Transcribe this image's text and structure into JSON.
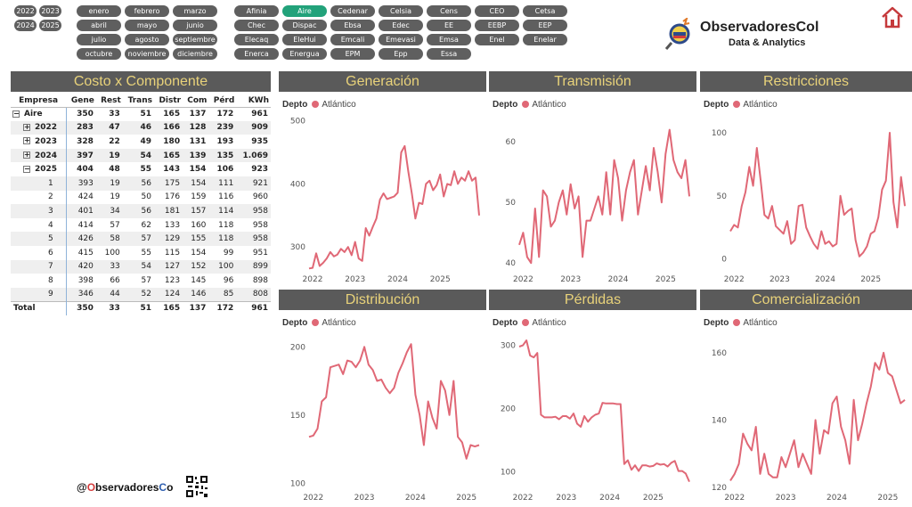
{
  "years": [
    "2022",
    "2023",
    "2024",
    "2025"
  ],
  "months": [
    "enero",
    "febrero",
    "marzo",
    "abril",
    "mayo",
    "junio",
    "julio",
    "agosto",
    "septiembre",
    "octubre",
    "noviembre",
    "diciembre"
  ],
  "companies": [
    "Afinia",
    "Aire",
    "Cedenar",
    "Celsia",
    "Cens",
    "CEO",
    "Cetsa",
    "Chec",
    "Dispac",
    "Ebsa",
    "Edec",
    "EE",
    "EEBP",
    "EEP",
    "Elecaq",
    "EleHui",
    "Emcali",
    "Emevasi",
    "Emsa",
    "Enel",
    "Enelar",
    "Enerca",
    "Energua",
    "EPM",
    "Epp",
    "Essa"
  ],
  "selected_company": "Aire",
  "logo": {
    "title": "ObservadoresCol",
    "subtitle": "Data & Analytics"
  },
  "icons": {
    "home": "home-icon",
    "logo": "magnifier-logo-icon",
    "qr": "qr-code-icon"
  },
  "colors": {
    "accent": "#22a27a",
    "series": "#e06876",
    "header_bg": "#5a5a5a",
    "header_text": "#e8d27a"
  },
  "matrix": {
    "title": "Costo x Componente",
    "headers": [
      "Empresa",
      "Gene",
      "Rest",
      "Trans",
      "Distr",
      "Com",
      "Pérd",
      "KWh"
    ],
    "rows": [
      {
        "label": "Aire",
        "toggle": "⊟",
        "level": 0,
        "bold": true,
        "vals": [
          "350",
          "33",
          "51",
          "165",
          "137",
          "172",
          "961"
        ]
      },
      {
        "label": "2022",
        "toggle": "⊞",
        "level": 1,
        "bold": true,
        "vals": [
          "283",
          "47",
          "46",
          "166",
          "128",
          "239",
          "909"
        ]
      },
      {
        "label": "2023",
        "toggle": "⊞",
        "level": 1,
        "bold": true,
        "vals": [
          "328",
          "22",
          "49",
          "180",
          "131",
          "193",
          "935"
        ]
      },
      {
        "label": "2024",
        "toggle": "⊞",
        "level": 1,
        "bold": true,
        "vals": [
          "397",
          "19",
          "54",
          "165",
          "139",
          "135",
          "1.069"
        ]
      },
      {
        "label": "2025",
        "toggle": "⊟",
        "level": 1,
        "bold": true,
        "vals": [
          "404",
          "48",
          "55",
          "143",
          "154",
          "106",
          "923"
        ]
      },
      {
        "label": "1",
        "level": 2,
        "vals": [
          "393",
          "19",
          "56",
          "175",
          "154",
          "111",
          "921"
        ]
      },
      {
        "label": "2",
        "level": 2,
        "vals": [
          "424",
          "19",
          "50",
          "176",
          "159",
          "116",
          "960"
        ]
      },
      {
        "label": "3",
        "level": 2,
        "vals": [
          "401",
          "34",
          "56",
          "181",
          "157",
          "114",
          "958"
        ]
      },
      {
        "label": "4",
        "level": 2,
        "vals": [
          "414",
          "57",
          "62",
          "133",
          "160",
          "118",
          "958"
        ]
      },
      {
        "label": "5",
        "level": 2,
        "vals": [
          "426",
          "58",
          "57",
          "129",
          "155",
          "118",
          "958"
        ]
      },
      {
        "label": "6",
        "level": 2,
        "vals": [
          "415",
          "100",
          "55",
          "115",
          "154",
          "99",
          "951"
        ]
      },
      {
        "label": "7",
        "level": 2,
        "vals": [
          "420",
          "33",
          "54",
          "127",
          "152",
          "100",
          "899"
        ]
      },
      {
        "label": "8",
        "level": 2,
        "vals": [
          "398",
          "66",
          "57",
          "123",
          "145",
          "96",
          "898"
        ]
      },
      {
        "label": "9",
        "level": 2,
        "vals": [
          "346",
          "44",
          "52",
          "124",
          "146",
          "85",
          "808"
        ]
      }
    ],
    "total": {
      "label": "Total",
      "vals": [
        "350",
        "33",
        "51",
        "165",
        "137",
        "172",
        "961"
      ]
    }
  },
  "legend": {
    "label": "Depto",
    "series": "Atlántico"
  },
  "footer": {
    "handle_prefix": "@",
    "handle_o": "O",
    "handle_mid": "bservadores",
    "handle_c": "C",
    "handle_end": "o"
  },
  "chart_data": [
    {
      "type": "line",
      "title": "Generación",
      "x_labels": [
        "2022",
        "2023",
        "2024",
        "2025"
      ],
      "y_ticks": [
        300,
        400,
        500
      ],
      "ylim": [
        265,
        505
      ],
      "values": [
        266,
        267,
        290,
        270,
        275,
        282,
        292,
        285,
        288,
        297,
        292,
        300,
        287,
        308,
        282,
        278,
        330,
        318,
        332,
        345,
        375,
        385,
        376,
        378,
        380,
        386,
        450,
        460,
        420,
        385,
        345,
        370,
        368,
        400,
        405,
        390,
        398,
        415,
        380,
        400,
        398,
        420,
        400,
        410,
        405,
        420,
        405,
        410,
        350
      ]
    },
    {
      "type": "line",
      "title": "Transmisión",
      "x_labels": [
        "2022",
        "2023",
        "2024",
        "2025"
      ],
      "y_ticks": [
        40,
        50,
        60
      ],
      "ylim": [
        39,
        64
      ],
      "values": [
        43,
        45,
        41,
        40,
        49,
        41,
        52,
        51,
        46,
        47,
        50,
        52,
        48,
        53,
        49,
        51,
        41,
        47,
        47,
        49,
        51,
        48,
        55,
        48,
        57,
        54,
        47,
        52,
        55,
        57,
        48,
        52,
        56,
        52,
        59,
        55,
        50,
        58,
        62,
        57,
        55,
        54,
        57,
        51
      ]
    },
    {
      "type": "line",
      "title": "Restricciones",
      "x_labels": [
        "2022",
        "2023",
        "2024",
        "2025"
      ],
      "y_ticks": [
        0,
        50,
        100
      ],
      "ylim": [
        -8,
        112
      ],
      "values": [
        22,
        27,
        25,
        42,
        53,
        73,
        58,
        88,
        62,
        35,
        32,
        42,
        26,
        23,
        20,
        30,
        12,
        15,
        42,
        43,
        25,
        18,
        12,
        8,
        22,
        12,
        14,
        10,
        12,
        50,
        35,
        38,
        40,
        15,
        2,
        5,
        10,
        20,
        22,
        33,
        55,
        62,
        100,
        45,
        25,
        65,
        42
      ]
    },
    {
      "type": "line",
      "title": "Distribución",
      "x_labels": [
        "2022",
        "2023",
        "2024",
        "2025"
      ],
      "y_ticks": [
        100,
        150,
        200
      ],
      "ylim": [
        97,
        208
      ],
      "values": [
        134,
        135,
        140,
        160,
        163,
        185,
        186,
        187,
        180,
        190,
        189,
        185,
        190,
        200,
        187,
        183,
        175,
        176,
        170,
        166,
        170,
        181,
        188,
        196,
        202,
        165,
        150,
        128,
        160,
        148,
        140,
        175,
        168,
        150,
        175,
        134,
        130,
        118,
        128,
        127,
        128
      ]
    },
    {
      "type": "line",
      "title": "Pérdidas",
      "x_labels": [
        "2022",
        "2023",
        "2024",
        "2025"
      ],
      "y_ticks": [
        100,
        200,
        300
      ],
      "ylim": [
        75,
        315
      ],
      "values": [
        298,
        300,
        308,
        284,
        281,
        288,
        190,
        186,
        186,
        186,
        187,
        183,
        188,
        188,
        184,
        192,
        176,
        171,
        188,
        179,
        186,
        190,
        192,
        209,
        208,
        208,
        208,
        207,
        207,
        112,
        118,
        103,
        110,
        101,
        110,
        110,
        108,
        109,
        113,
        111,
        112,
        108,
        114,
        117,
        101,
        101,
        97,
        84
      ]
    },
    {
      "type": "line",
      "title": "Comercialización",
      "x_labels": [
        "2022",
        "2023",
        "2024",
        "2025"
      ],
      "y_ticks": [
        120,
        140,
        160
      ],
      "ylim": [
        120,
        165
      ],
      "values": [
        122,
        124,
        127,
        136,
        133,
        131,
        138,
        124,
        130,
        124,
        123,
        123,
        129,
        126,
        130,
        134,
        126,
        130,
        127,
        124,
        140,
        130,
        137,
        136,
        145,
        147,
        138,
        134,
        127,
        146,
        134,
        139,
        145,
        150,
        157,
        155,
        160,
        154,
        153,
        149,
        145,
        146
      ]
    }
  ]
}
